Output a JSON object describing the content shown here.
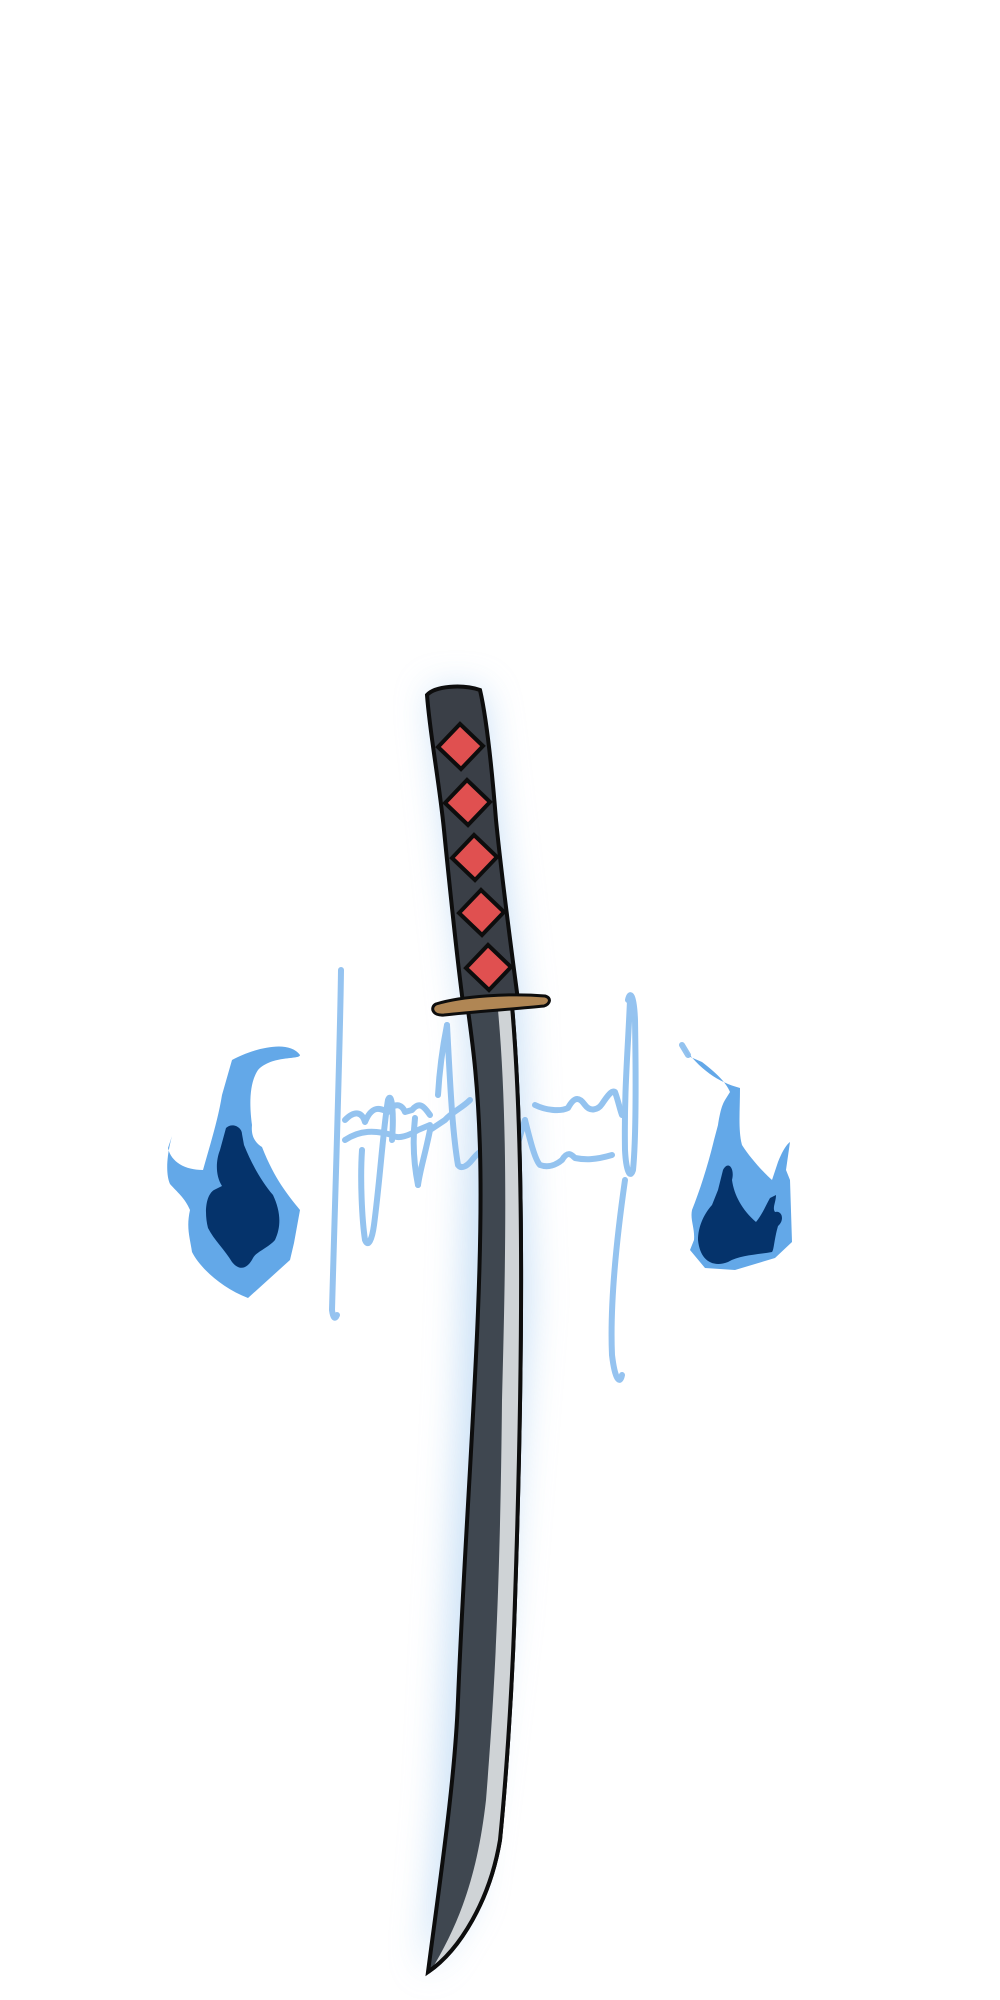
{
  "artwork": {
    "subject": "katana",
    "colors": {
      "background": "#ffffff",
      "handle": "#3a3f47",
      "handle_outline": "#0d0d0d",
      "diamond": "#e05050",
      "guard": "#b08654",
      "blade_dark": "#3f4750",
      "blade_edge": "#cfd3d6",
      "glow": "#9cc6ee",
      "flame_light": "#63a8e8",
      "flame_dark": "#05336b",
      "signature": "#8fc0ef"
    },
    "handle_diamond_count": 5,
    "icons": [
      "katana-icon",
      "blue-flame-icon",
      "signature-watermark-icon"
    ]
  }
}
